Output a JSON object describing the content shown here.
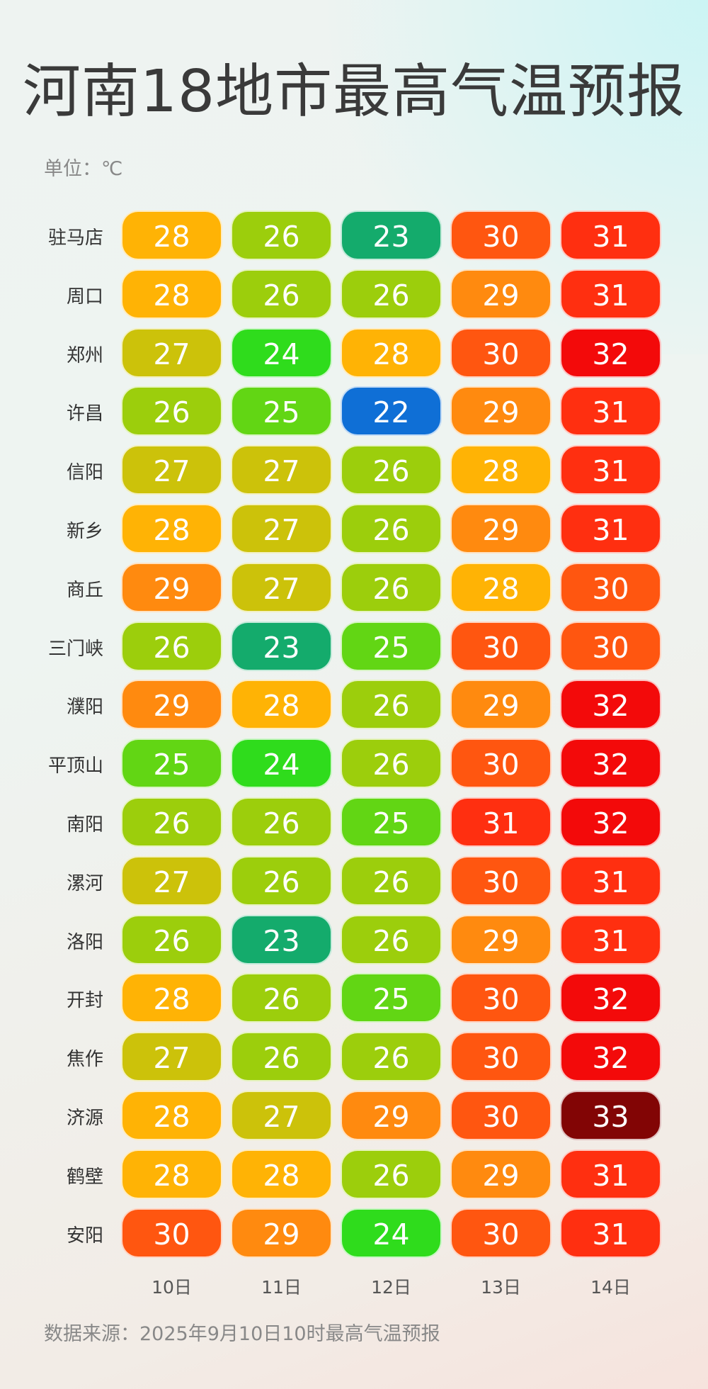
{
  "title": "河南18地市最高气温预报",
  "unit": "单位：℃",
  "source": "数据来源：2025年9月10日10时最高气温预报",
  "chart_data": {
    "type": "table",
    "title": "河南18地市最高气温预报",
    "columns": [
      "10日",
      "11日",
      "12日",
      "13日",
      "14日"
    ],
    "rows": [
      {
        "city": "驻马店",
        "values": [
          28,
          26,
          23,
          30,
          31
        ]
      },
      {
        "city": "周口",
        "values": [
          28,
          26,
          26,
          29,
          31
        ]
      },
      {
        "city": "郑州",
        "values": [
          27,
          24,
          28,
          30,
          32
        ]
      },
      {
        "city": "许昌",
        "values": [
          26,
          25,
          22,
          29,
          31
        ]
      },
      {
        "city": "信阳",
        "values": [
          27,
          27,
          26,
          28,
          31
        ]
      },
      {
        "city": "新乡",
        "values": [
          28,
          27,
          26,
          29,
          31
        ]
      },
      {
        "city": "商丘",
        "values": [
          29,
          27,
          26,
          28,
          30
        ]
      },
      {
        "city": "三门峡",
        "values": [
          26,
          23,
          25,
          30,
          30
        ]
      },
      {
        "city": "濮阳",
        "values": [
          29,
          28,
          26,
          29,
          32
        ]
      },
      {
        "city": "平顶山",
        "values": [
          25,
          24,
          26,
          30,
          32
        ]
      },
      {
        "city": "南阳",
        "values": [
          26,
          26,
          25,
          31,
          32
        ]
      },
      {
        "city": "漯河",
        "values": [
          27,
          26,
          26,
          30,
          31
        ]
      },
      {
        "city": "洛阳",
        "values": [
          26,
          23,
          26,
          29,
          31
        ]
      },
      {
        "city": "开封",
        "values": [
          28,
          26,
          25,
          30,
          32
        ]
      },
      {
        "city": "焦作",
        "values": [
          27,
          26,
          26,
          30,
          32
        ]
      },
      {
        "city": "济源",
        "values": [
          28,
          27,
          29,
          30,
          33
        ]
      },
      {
        "city": "鹤壁",
        "values": [
          28,
          28,
          26,
          29,
          31
        ]
      },
      {
        "city": "安阳",
        "values": [
          30,
          29,
          24,
          30,
          31
        ]
      }
    ],
    "color_scale": {
      "22": "#0f6fd6",
      "23": "#14ab6c",
      "24": "#2fdc1c",
      "25": "#62d614",
      "26": "#9cce0c",
      "27": "#ccc20a",
      "28": "#ffb305",
      "29": "#ff8a0f",
      "30": "#ff5610",
      "31": "#ff2f10",
      "32": "#f30a0a",
      "33": "#820505"
    }
  }
}
